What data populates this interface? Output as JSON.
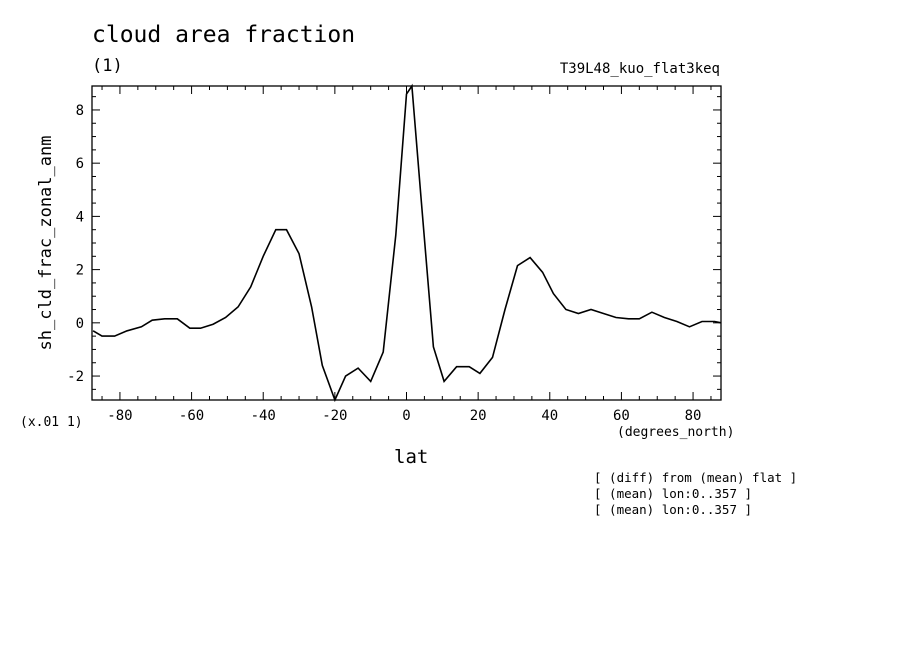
{
  "chart_data": {
    "type": "line",
    "title": "cloud area fraction",
    "units_label": "(1)",
    "run_label": "T39L48_kuo_flat3keq",
    "ylabel": "sh_cld_frac_zonal_anm",
    "xlabel": "lat",
    "x_units": "(degrees_north)",
    "scale_note": "(x.01 1)",
    "xlim": [
      -87.8,
      87.8
    ],
    "ylim": [
      -2.9,
      8.9
    ],
    "x_ticks": [
      -80,
      -60,
      -40,
      -20,
      0,
      20,
      40,
      60,
      80
    ],
    "x_tick_labels": [
      "-80",
      "-60",
      "-40",
      "-20",
      "0",
      "20",
      "40",
      "60",
      "80"
    ],
    "y_ticks": [
      -2,
      0,
      2,
      4,
      6,
      8
    ],
    "y_tick_labels": [
      "-2",
      "0",
      "2",
      "4",
      "6",
      "8"
    ],
    "grid": false,
    "series": [
      {
        "x": [
          -87.5,
          -85,
          -81.5,
          -78,
          -74,
          -71,
          -67.5,
          -64,
          -60.5,
          -57.5,
          -54,
          -50.5,
          -47,
          -43.5,
          -40,
          -36.5,
          -33.5,
          -30,
          -26.5,
          -23.5,
          -20,
          -17,
          -13.5,
          -10,
          -6.5,
          -3,
          0,
          1.5,
          4,
          7.5,
          10.5,
          14,
          17.5,
          20.5,
          24,
          27.5,
          31,
          34.5,
          38,
          41,
          44.5,
          48,
          51.5,
          55,
          58.5,
          62,
          65,
          68.5,
          72,
          75.5,
          79,
          82.5,
          86,
          87.8
        ],
        "values": [
          -0.3,
          -0.5,
          -0.5,
          -0.3,
          -0.15,
          0.1,
          0.15,
          0.15,
          -0.2,
          -0.2,
          -0.05,
          0.2,
          0.6,
          1.35,
          2.5,
          3.5,
          3.5,
          2.6,
          0.6,
          -1.6,
          -2.9,
          -2.0,
          -1.7,
          -2.2,
          -1.1,
          3.3,
          8.6,
          8.9,
          4.8,
          -0.9,
          -2.2,
          -1.65,
          -1.65,
          -1.9,
          -1.3,
          0.5,
          2.15,
          2.45,
          1.9,
          1.1,
          0.5,
          0.35,
          0.5,
          0.35,
          0.2,
          0.15,
          0.15,
          0.4,
          0.2,
          0.05,
          -0.15,
          0.05,
          0.05,
          0.0
        ]
      }
    ],
    "notes": [
      "[ (diff) from (mean) flat ]",
      "[ (mean) lon:0..357 ]",
      "[ (mean) lon:0..357 ]"
    ]
  }
}
